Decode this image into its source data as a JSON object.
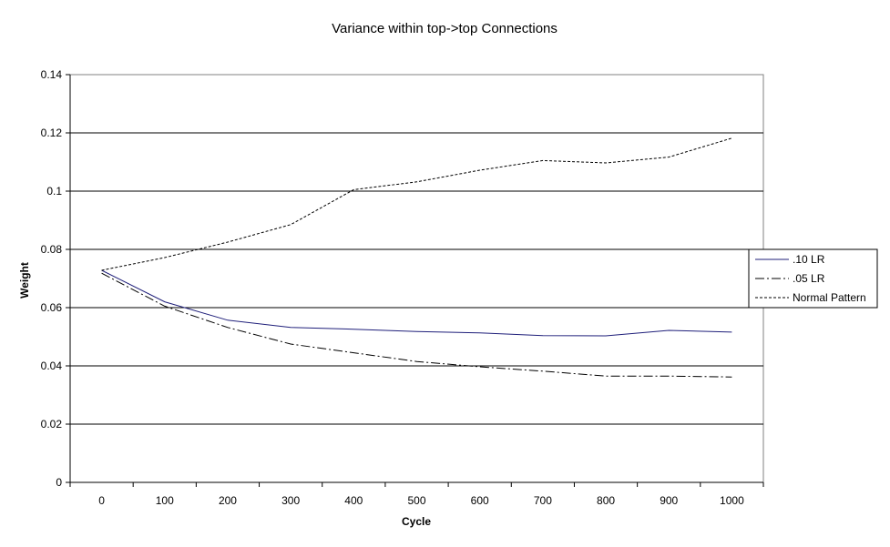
{
  "chart_data": {
    "type": "line",
    "title": "Variance within top->top Connections",
    "xlabel": "Cycle",
    "ylabel": "Weight",
    "x": [
      0,
      100,
      200,
      300,
      400,
      500,
      600,
      700,
      800,
      900,
      1000
    ],
    "x_ticks": [
      "0",
      "100",
      "200",
      "300",
      "400",
      "500",
      "600",
      "700",
      "800",
      "900",
      "1000"
    ],
    "xlim": [
      -50,
      1050
    ],
    "ylim": [
      0,
      0.14
    ],
    "y_ticks": [
      "0",
      "0.02",
      "0.04",
      "0.06",
      "0.08",
      "0.1",
      "0.12",
      "0.14"
    ],
    "grid": "horizontal",
    "legend_position": "right",
    "series": [
      {
        "name": ".10 LR",
        "values": [
          0.0728,
          0.062,
          0.0557,
          0.0532,
          0.0526,
          0.0518,
          0.0513,
          0.0504,
          0.0503,
          0.0522,
          0.0516
        ],
        "color": "#1f1f7a",
        "dash": "solid"
      },
      {
        "name": ".05 LR",
        "values": [
          0.0718,
          0.0605,
          0.0532,
          0.0475,
          0.0445,
          0.0415,
          0.0397,
          0.0382,
          0.0365,
          0.0365,
          0.0362
        ],
        "color": "#000000",
        "dash": "dashdot"
      },
      {
        "name": "Normal Pattern",
        "values": [
          0.0728,
          0.0772,
          0.0825,
          0.0885,
          0.1005,
          0.1032,
          0.1072,
          0.1105,
          0.1097,
          0.1117,
          0.1182
        ],
        "color": "#000000",
        "dash": "dotted"
      }
    ]
  }
}
